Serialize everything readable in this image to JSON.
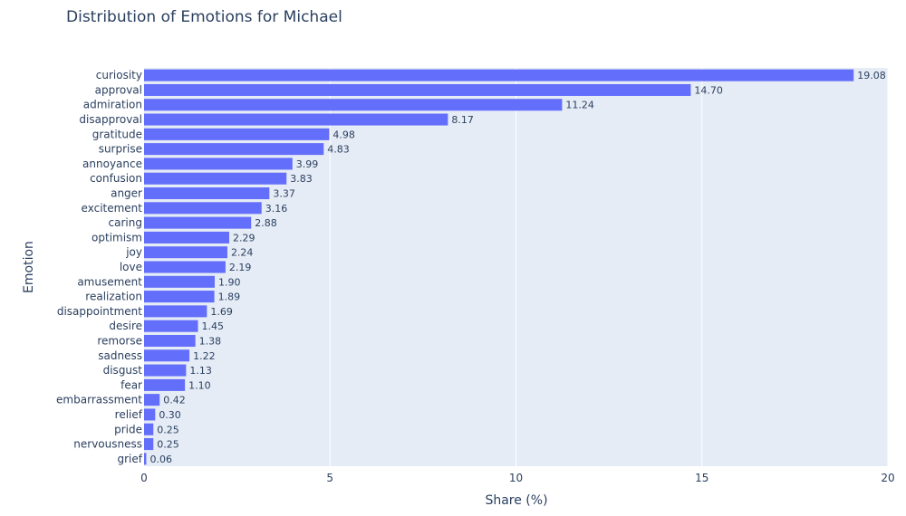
{
  "chart_data": {
    "type": "bar",
    "orientation": "horizontal",
    "title": "Distribution of Emotions for Michael",
    "xlabel": "Share (%)",
    "ylabel": "Emotion",
    "xlim": [
      0,
      20
    ],
    "xticks": [
      0,
      5,
      10,
      15,
      20
    ],
    "grid": true,
    "bar_color": "#636efa",
    "plot_background": "#e5ecf6",
    "categories": [
      "curiosity",
      "approval",
      "admiration",
      "disapproval",
      "gratitude",
      "surprise",
      "annoyance",
      "confusion",
      "anger",
      "excitement",
      "caring",
      "optimism",
      "joy",
      "love",
      "amusement",
      "realization",
      "disappointment",
      "desire",
      "remorse",
      "sadness",
      "disgust",
      "fear",
      "embarrassment",
      "relief",
      "pride",
      "nervousness",
      "grief"
    ],
    "values": [
      19.08,
      14.7,
      11.24,
      8.17,
      4.98,
      4.83,
      3.99,
      3.83,
      3.37,
      3.16,
      2.88,
      2.29,
      2.24,
      2.19,
      1.9,
      1.89,
      1.69,
      1.45,
      1.38,
      1.22,
      1.13,
      1.1,
      0.42,
      0.3,
      0.25,
      0.25,
      0.06
    ],
    "data_labels": [
      "19.08",
      "14.70",
      "11.24",
      "8.17",
      "4.98",
      "4.83",
      "3.99",
      "3.83",
      "3.37",
      "3.16",
      "2.88",
      "2.29",
      "2.24",
      "2.19",
      "1.90",
      "1.89",
      "1.69",
      "1.45",
      "1.38",
      "1.22",
      "1.13",
      "1.10",
      "0.42",
      "0.30",
      "0.25",
      "0.25",
      "0.06"
    ]
  }
}
